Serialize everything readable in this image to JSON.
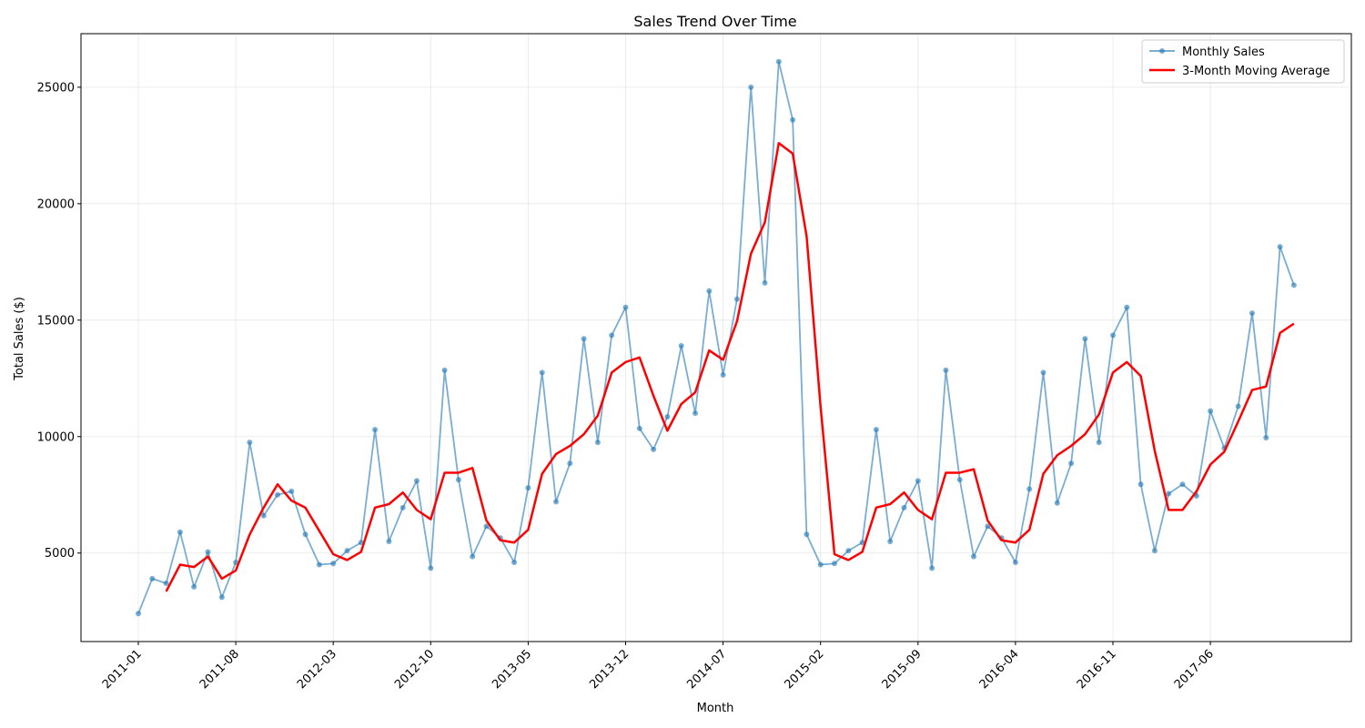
{
  "chart_data": {
    "type": "line",
    "title": "Sales Trend Over Time",
    "xlabel": "Month",
    "ylabel": "Total Sales ($)",
    "x": [
      "2011-01",
      "2011-02",
      "2011-03",
      "2011-04",
      "2011-05",
      "2011-06",
      "2011-07",
      "2011-08",
      "2011-09",
      "2011-10",
      "2011-11",
      "2011-12",
      "2012-01",
      "2012-02",
      "2012-03",
      "2012-04",
      "2012-05",
      "2012-06",
      "2012-07",
      "2012-08",
      "2012-09",
      "2012-10",
      "2012-11",
      "2012-12",
      "2013-01",
      "2013-02",
      "2013-03",
      "2013-04",
      "2013-05",
      "2013-06",
      "2013-07",
      "2013-08",
      "2013-09",
      "2013-10",
      "2013-11",
      "2013-12",
      "2014-01",
      "2014-02",
      "2014-03",
      "2014-04",
      "2014-05",
      "2014-06",
      "2014-07",
      "2014-08",
      "2014-09",
      "2014-10",
      "2014-11",
      "2014-12",
      "2015-01",
      "2015-02",
      "2015-03",
      "2015-04",
      "2015-05",
      "2015-06",
      "2015-07",
      "2015-08",
      "2015-09",
      "2015-10",
      "2015-11",
      "2015-12",
      "2016-01",
      "2016-02",
      "2016-03",
      "2016-04",
      "2016-05",
      "2016-06",
      "2016-07",
      "2016-08",
      "2016-09",
      "2016-10",
      "2016-11",
      "2016-12",
      "2017-01",
      "2017-02",
      "2017-03",
      "2017-04",
      "2017-05",
      "2017-06",
      "2017-07",
      "2017-08",
      "2017-09",
      "2017-10",
      "2017-11",
      "2017-12"
    ],
    "x_ticks": [
      "2011-01",
      "2011-08",
      "2012-03",
      "2012-10",
      "2013-05",
      "2013-12",
      "2014-07",
      "2015-02",
      "2015-09",
      "2016-04",
      "2016-11",
      "2017-06"
    ],
    "y_ticks": [
      5000,
      10000,
      15000,
      20000,
      25000
    ],
    "ylim": [
      1200,
      27300
    ],
    "grid": true,
    "legend_position": "top-right",
    "series": [
      {
        "name": "Monthly Sales",
        "color": "#1f77b4",
        "marker": "circle",
        "values": [
          2400,
          3900,
          3700,
          5900,
          3550,
          5050,
          3100,
          4600,
          9750,
          6600,
          7500,
          7650,
          5800,
          4500,
          4550,
          5100,
          5450,
          10300,
          5500,
          6950,
          8100,
          4350,
          12850,
          8150,
          4850,
          6150,
          5650,
          4600,
          7800,
          12750,
          7200,
          8850,
          14200,
          9750,
          14350,
          15550,
          10350,
          9450,
          10850,
          13900,
          11000,
          16250,
          12650,
          15900,
          25000,
          16600,
          26100,
          23600,
          5800,
          4500,
          4550,
          5100,
          5450,
          10300,
          5500,
          6950,
          8100,
          4350,
          12850,
          8150,
          4850,
          6150,
          5650,
          4600,
          7750,
          12750,
          7150,
          8850,
          14200,
          9750,
          14350,
          15550,
          7950,
          5100,
          7550,
          7950,
          7450,
          11100,
          9500,
          11300,
          15300,
          9950,
          18150,
          16500
        ]
      },
      {
        "name": "3-Month Moving Average",
        "color": "#ff0000",
        "marker": "none",
        "values": [
          null,
          null,
          3350,
          4500,
          4400,
          4850,
          3900,
          4250,
          5800,
          6950,
          7950,
          7250,
          6950,
          5950,
          4950,
          4700,
          5050,
          6950,
          7100,
          7600,
          6850,
          6450,
          8450,
          8450,
          8650,
          6400,
          5550,
          5450,
          6000,
          8400,
          9250,
          9600,
          10100,
          10900,
          12750,
          13200,
          13400,
          11750,
          10250,
          11400,
          11900,
          13700,
          13300,
          14950,
          17850,
          19200,
          22600,
          22150,
          18600,
          11300,
          4950,
          4700,
          5050,
          6950,
          7100,
          7600,
          6850,
          6450,
          8450,
          8450,
          8600,
          6400,
          5550,
          5450,
          6000,
          8400,
          9200,
          9600,
          10100,
          10950,
          12750,
          13200,
          12600,
          9400,
          6850,
          6850,
          7650,
          8800,
          9350,
          10650,
          12000,
          12150,
          14450,
          14850
        ]
      }
    ]
  }
}
